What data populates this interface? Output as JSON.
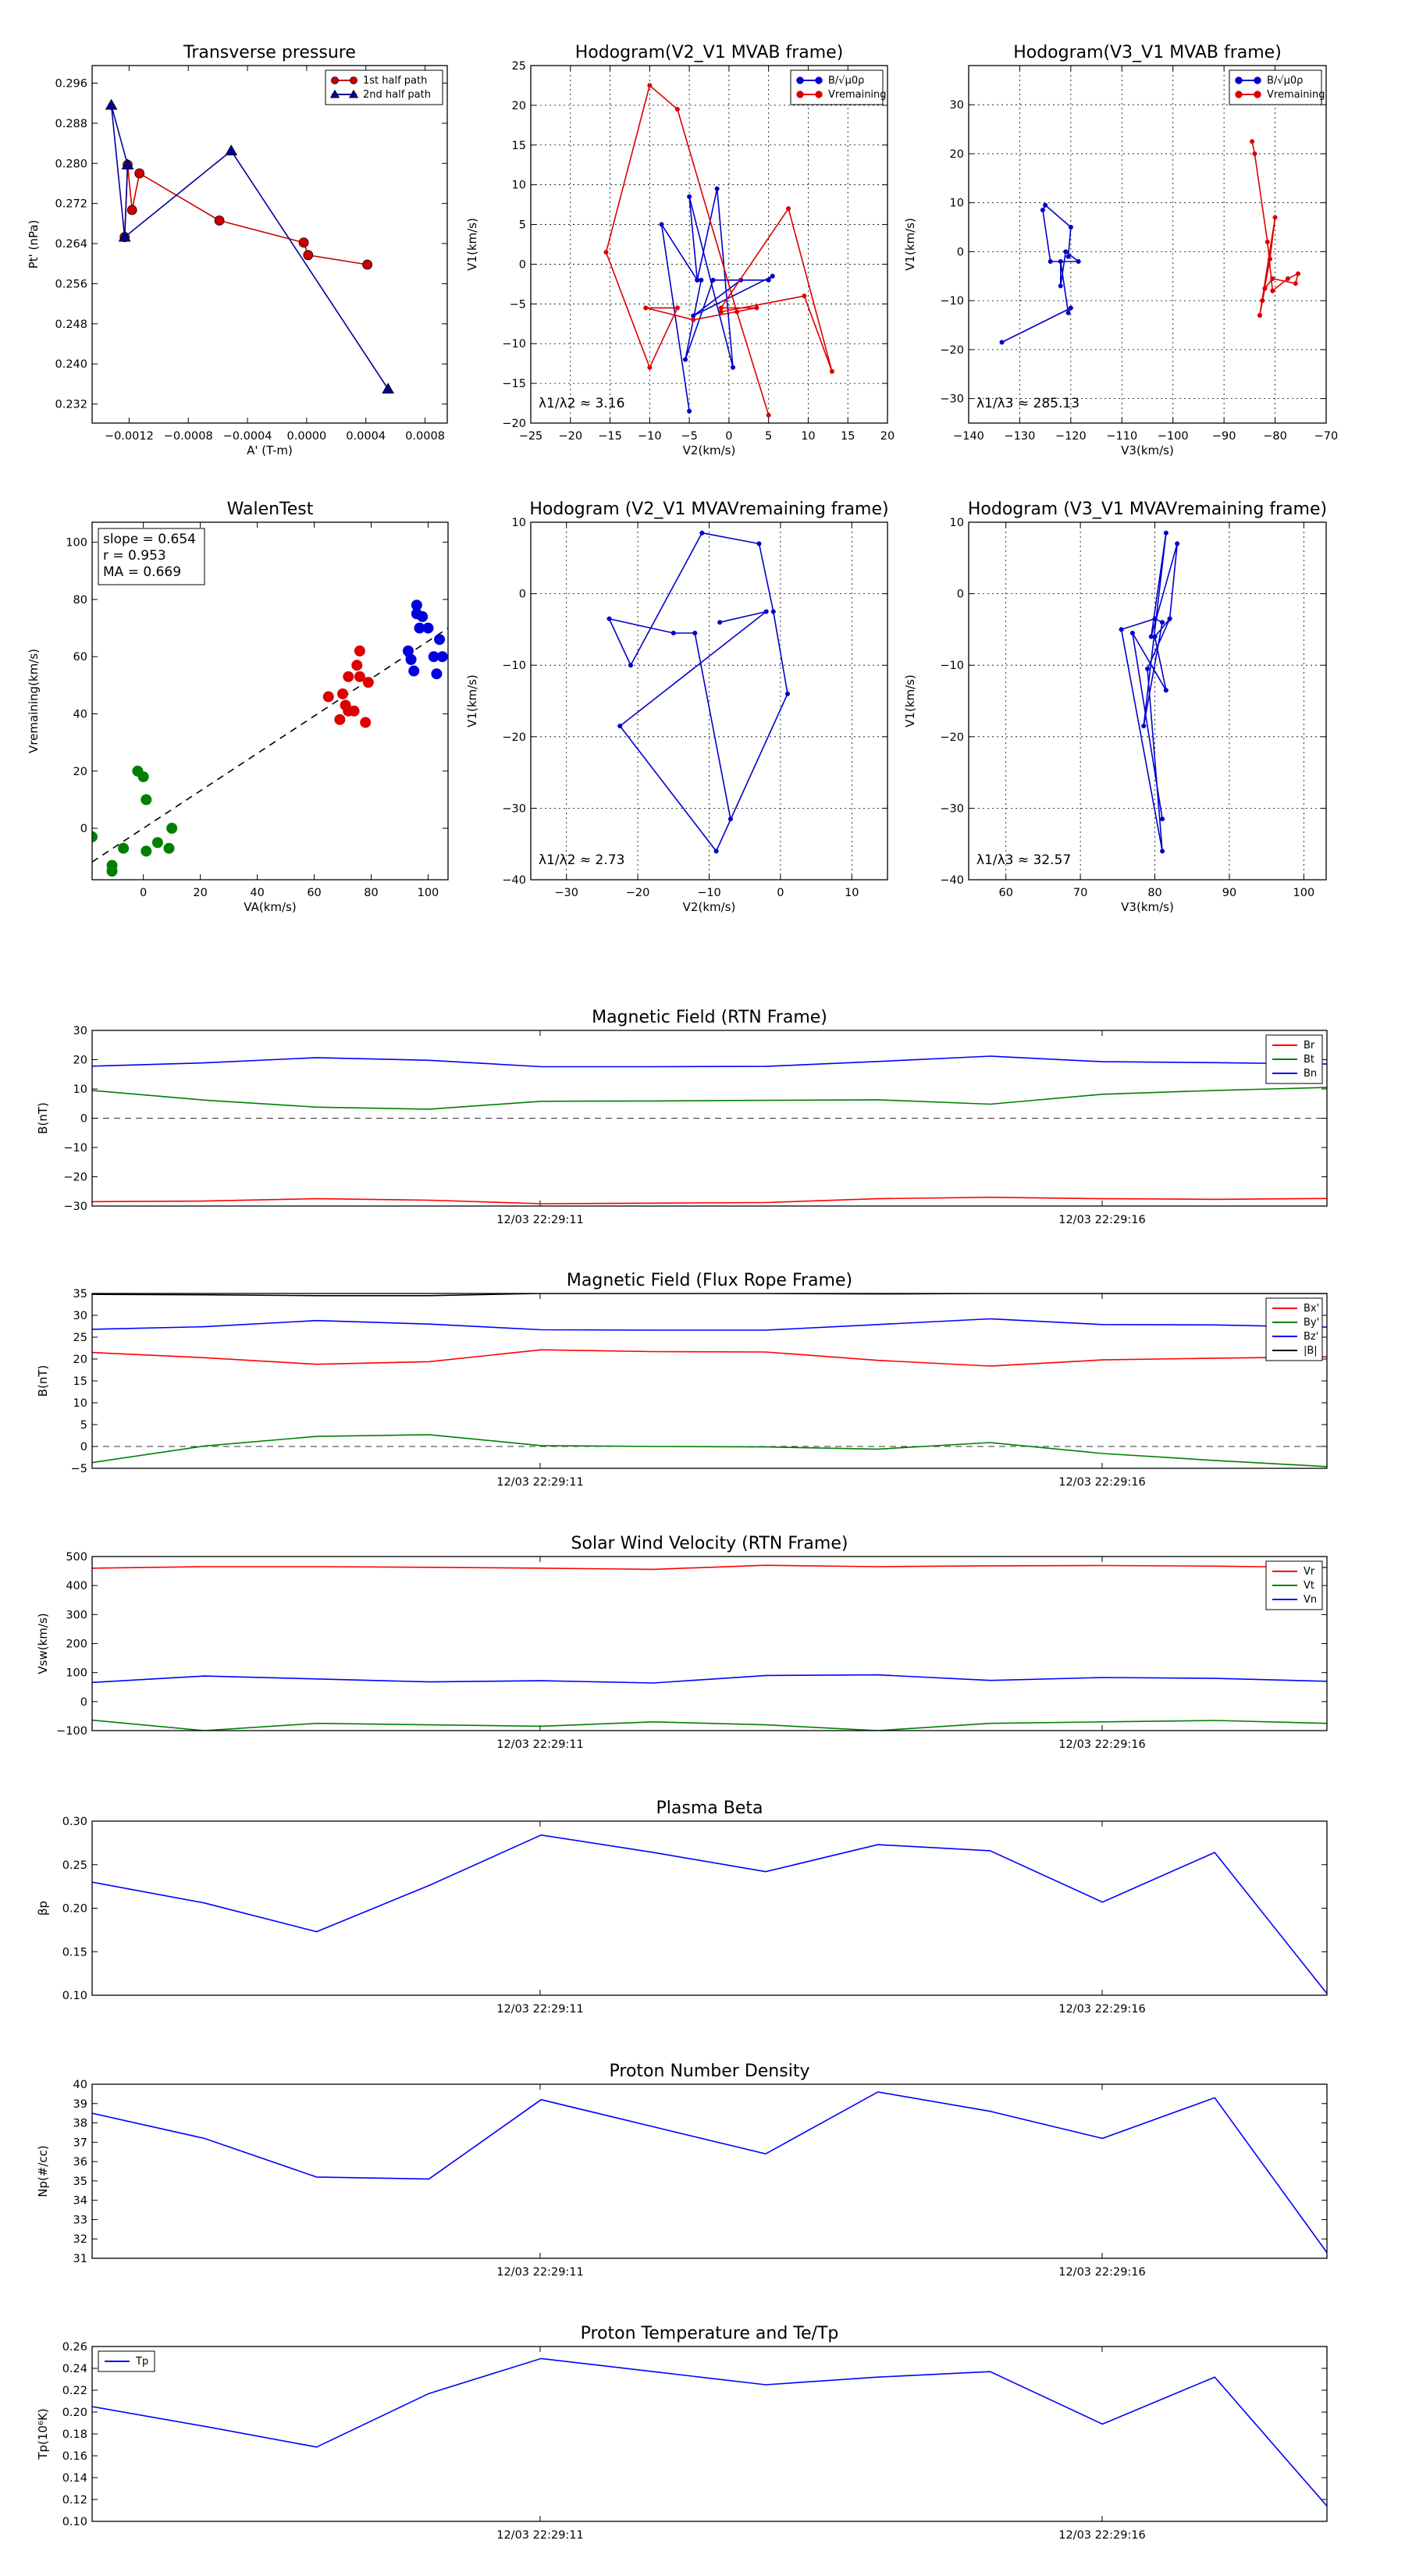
{
  "chart_data": [
    {
      "id": "transverse",
      "type": "line",
      "title": "Transverse pressure",
      "xlabel": "A' (T-m)",
      "ylabel": "Pt' (nPa)",
      "xlim": [
        -0.00145,
        0.00095
      ],
      "ylim": [
        0.2282,
        0.2995
      ],
      "xticks": [
        -0.0012,
        -0.0008,
        -0.0004,
        0.0,
        0.0004,
        0.0008
      ],
      "xtick_labels": [
        "−0.0012",
        "−0.0008",
        "−0.0004",
        "0.0000",
        "0.0004",
        "0.0008"
      ],
      "yticks": [
        0.232,
        0.24,
        0.248,
        0.256,
        0.264,
        0.272,
        0.28,
        0.288,
        0.296
      ],
      "ytick_labels": [
        "0.232",
        "0.240",
        "0.248",
        "0.256",
        "0.264",
        "0.272",
        "0.280",
        "0.288",
        "0.296"
      ],
      "grid": false,
      "legend": "top-right",
      "series": [
        {
          "name": "1st half path",
          "color": "#cc0000",
          "marker": "circle",
          "x": [
            0.00041,
            1e-05,
            -2e-05,
            -0.00059,
            -0.00113,
            -0.00118,
            -0.00121,
            -0.00123
          ],
          "y": [
            0.2598,
            0.2617,
            0.2642,
            0.2686,
            0.278,
            0.2707,
            0.2797,
            0.2653
          ]
        },
        {
          "name": "2nd half path",
          "color": "#000099",
          "marker": "triangle",
          "x": [
            -0.00123,
            -0.00121,
            -0.00132,
            -0.00123,
            -0.00051,
            0.00055
          ],
          "y": [
            0.2653,
            0.2797,
            0.2916,
            0.2653,
            0.2825,
            0.235
          ]
        }
      ]
    },
    {
      "id": "hodo_v2_mvab",
      "type": "line",
      "title": "Hodogram(V2_V1 MVAB frame)",
      "xlabel": "V2(km/s)",
      "ylabel": "V1(km/s)",
      "xlim": [
        -25,
        20
      ],
      "ylim": [
        -20,
        25
      ],
      "xticks": [
        -25,
        -20,
        -15,
        -10,
        -5,
        0,
        5,
        10,
        15,
        20
      ],
      "xtick_labels": [
        "−25",
        "−20",
        "−15",
        "−10",
        "−5",
        "0",
        "5",
        "10",
        "15",
        "20"
      ],
      "yticks": [
        -20,
        -15,
        -10,
        -5,
        0,
        5,
        10,
        15,
        20,
        25
      ],
      "ytick_labels": [
        "−20",
        "−15",
        "−10",
        "−5",
        "0",
        "5",
        "10",
        "15",
        "20",
        "25"
      ],
      "grid": true,
      "legend": "top-right",
      "annotation": "λ1/λ2 ≈ 3.16",
      "series": [
        {
          "name": "B/√μ0ρ",
          "color": "#0000cc",
          "x": [
            -5,
            -8.5,
            -4,
            -1.5,
            0.5,
            -5,
            -4,
            -3.5,
            -5.5,
            -2,
            5,
            5.5,
            -4.5,
            1.5
          ],
          "y": [
            -18.5,
            5,
            -2,
            9.5,
            -13,
            8.5,
            -2,
            -2,
            -12,
            -2,
            -2,
            -1.5,
            -6.5,
            -2
          ]
        },
        {
          "name": "Vremaining",
          "color": "#dd0000",
          "x": [
            5,
            1,
            -6.5,
            -10,
            -15.5,
            -10,
            -6.5,
            -10.5,
            -4.5,
            3.5,
            -1,
            7.5,
            13,
            9.5,
            -1
          ],
          "y": [
            -19,
            -6,
            19.5,
            22.5,
            1.5,
            -13,
            -5.5,
            -5.5,
            -7,
            -5.5,
            -5.5,
            7,
            -13.5,
            -4,
            -6
          ]
        }
      ]
    },
    {
      "id": "hodo_v3_mvab",
      "type": "line",
      "title": "Hodogram(V3_V1 MVAB frame)",
      "xlabel": "V3(km/s)",
      "ylabel": "V1(km/s)",
      "xlim": [
        -140,
        -70
      ],
      "ylim": [
        -35,
        38
      ],
      "xticks": [
        -140,
        -130,
        -120,
        -110,
        -100,
        -90,
        -80,
        -70
      ],
      "xtick_labels": [
        "−140",
        "−130",
        "−120",
        "−110",
        "−100",
        "−90",
        "−80",
        "−70"
      ],
      "yticks": [
        -30,
        -20,
        -10,
        0,
        10,
        20,
        30
      ],
      "ytick_labels": [
        "−30",
        "−20",
        "−10",
        "0",
        "10",
        "20",
        "30"
      ],
      "grid": true,
      "legend": "top-right",
      "annotation": "λ1/λ3 ≈ 285.13",
      "series": [
        {
          "name": "B/√μ0ρ",
          "color": "#0000cc",
          "x": [
            -133.5,
            -120,
            -120.5,
            -122,
            -122,
            -121,
            -118.5,
            -124,
            -125.5,
            -125,
            -120,
            -120.5
          ],
          "y": [
            -18.5,
            -11.5,
            -12.5,
            -2,
            -7,
            0,
            -2,
            -2,
            8.5,
            9.5,
            5,
            -1
          ]
        },
        {
          "name": "Vremaining",
          "color": "#dd0000",
          "x": [
            -84.5,
            -84,
            -81.5,
            -80.5,
            -77.5,
            -75.5,
            -76,
            -80.5,
            -82,
            -83,
            -80,
            -81,
            -82.5,
            -83
          ],
          "y": [
            22.5,
            20,
            2,
            -8,
            -5.5,
            -4.5,
            -6.5,
            -5.5,
            -7.5,
            -13,
            7,
            -1.5,
            -10,
            -13
          ]
        }
      ]
    },
    {
      "id": "walen",
      "type": "scatter",
      "title": "WalenTest",
      "xlabel": "VA(km/s)",
      "ylabel": "Vremaining(km/s)",
      "xlim": [
        -18,
        107
      ],
      "ylim": [
        -18,
        107
      ],
      "xticks": [
        0,
        20,
        40,
        60,
        80,
        100
      ],
      "xtick_labels": [
        "0",
        "20",
        "40",
        "60",
        "80",
        "100"
      ],
      "yticks": [
        0,
        20,
        40,
        60,
        80,
        100
      ],
      "ytick_labels": [
        "0",
        "20",
        "40",
        "60",
        "80",
        "100"
      ],
      "grid": false,
      "stats": [
        "slope = 0.654",
        "r = 0.953",
        "MA = 0.669"
      ],
      "fit_line": {
        "slope": 0.654,
        "intercept": 0,
        "color": "#000000",
        "style": "dashed"
      },
      "series": [
        {
          "name": "",
          "color": "#008000",
          "x": [
            -18,
            -11,
            -11,
            -7,
            -2,
            0,
            1,
            1,
            5,
            9,
            10
          ],
          "y": [
            -3,
            -13,
            -15,
            -7,
            20,
            18,
            10,
            -8,
            -5,
            -7,
            0
          ]
        },
        {
          "name": "",
          "color": "#dd0000",
          "x": [
            65,
            69,
            70,
            71,
            72,
            72,
            74,
            75,
            76,
            76,
            78,
            79
          ],
          "y": [
            46,
            38,
            47,
            43,
            53,
            41,
            41,
            57,
            53,
            62,
            37,
            51
          ]
        },
        {
          "name": "",
          "color": "#0000dd",
          "x": [
            93,
            94,
            95,
            96,
            96,
            97,
            98,
            100,
            102,
            103,
            104,
            105
          ],
          "y": [
            62,
            59,
            55,
            75,
            78,
            70,
            74,
            70,
            60,
            54,
            66,
            60
          ]
        }
      ]
    },
    {
      "id": "hodo_v2_mvav",
      "type": "line",
      "title": "Hodogram (V2_V1 MVAVremaining frame)",
      "xlabel": "V2(km/s)",
      "ylabel": "V1(km/s)",
      "xlim": [
        -35,
        15
      ],
      "ylim": [
        -40,
        10
      ],
      "xticks": [
        -30,
        -20,
        -10,
        0,
        10
      ],
      "xtick_labels": [
        "−30",
        "−20",
        "−10",
        "0",
        "10"
      ],
      "yticks": [
        -40,
        -30,
        -20,
        -10,
        0,
        10
      ],
      "ytick_labels": [
        "−40",
        "−30",
        "−20",
        "−10",
        "0",
        "10"
      ],
      "grid": true,
      "annotation": "λ1/λ2 ≈ 2.73",
      "series": [
        {
          "name": "",
          "color": "#0000cc",
          "x": [
            -7,
            -12,
            -15,
            -24,
            -21,
            -11,
            -3,
            -1,
            1,
            -9,
            -22.5,
            -2,
            -8.5
          ],
          "y": [
            -31.5,
            -5.5,
            -5.5,
            -3.5,
            -10,
            8.5,
            7,
            -2.5,
            -14,
            -36,
            -18.5,
            -2.5,
            -4
          ]
        }
      ]
    },
    {
      "id": "hodo_v3_mvav",
      "type": "line",
      "title": "Hodogram (V3_V1 MVAVremaining frame)",
      "xlabel": "V3(km/s)",
      "ylabel": "V1(km/s)",
      "xlim": [
        55,
        103
      ],
      "ylim": [
        -40,
        10
      ],
      "xticks": [
        60,
        70,
        80,
        90,
        100
      ],
      "xtick_labels": [
        "60",
        "70",
        "80",
        "90",
        "100"
      ],
      "yticks": [
        -40,
        -30,
        -20,
        -10,
        0,
        10
      ],
      "ytick_labels": [
        "−40",
        "−30",
        "−20",
        "−10",
        "0",
        "10"
      ],
      "grid": true,
      "annotation": "λ1/λ3 ≈ 32.57",
      "series": [
        {
          "name": "",
          "color": "#0000cc",
          "x": [
            81,
            77,
            81.5,
            80,
            82,
            79,
            81,
            75.5,
            80,
            81,
            78.5,
            81.5,
            79.5,
            83,
            82
          ],
          "y": [
            -31.5,
            -5.5,
            -13.5,
            -6,
            -3.5,
            -10.5,
            -36,
            -5,
            -3.5,
            -4,
            -18.5,
            8.5,
            -6,
            7,
            -3.5
          ]
        }
      ]
    },
    {
      "id": "mag_rtn",
      "type": "line",
      "title": "Magnetic Field (RTN Frame)",
      "ylabel": "B(nT)",
      "ylim": [
        -30,
        30
      ],
      "yticks": [
        -30,
        -20,
        -10,
        0,
        10,
        20,
        30
      ],
      "ytick_labels": [
        "−30",
        "−20",
        "−10",
        "0",
        "10",
        "20",
        "30"
      ],
      "time_ticks": [
        "12/03 22:29:11",
        "12/03 22:29:16"
      ],
      "legend": "top-right",
      "zero_line": true,
      "series": [
        {
          "name": "Br",
          "color": "#ff0000",
          "values": [
            -28.5,
            -28.3,
            -27.5,
            -28,
            -29.2,
            -29,
            -28.8,
            -27.5,
            -27,
            -27.5,
            -27.7,
            -27.4
          ]
        },
        {
          "name": "Bt",
          "color": "#008000",
          "values": [
            9.5,
            6.2,
            3.8,
            3.1,
            5.8,
            5.9,
            6.1,
            6.3,
            4.8,
            8.2,
            9.5,
            10.5
          ]
        },
        {
          "name": "Bn",
          "color": "#0000ff",
          "values": [
            17.8,
            18.9,
            20.7,
            19.8,
            17.6,
            17.6,
            17.7,
            19.4,
            21.2,
            19.3,
            19.0,
            18.5
          ]
        }
      ]
    },
    {
      "id": "mag_fr",
      "type": "line",
      "title": "Magnetic Field (Flux Rope Frame)",
      "ylabel": "B(nT)",
      "ylim": [
        -5,
        35
      ],
      "yticks": [
        -5,
        0,
        5,
        10,
        15,
        20,
        25,
        30,
        35
      ],
      "ytick_labels": [
        "−5",
        "0",
        "5",
        "10",
        "15",
        "20",
        "25",
        "30",
        "35"
      ],
      "time_ticks": [
        "12/03 22:29:11",
        "12/03 22:29:16"
      ],
      "legend": "top-right",
      "zero_line": true,
      "series": [
        {
          "name": "Bx'",
          "color": "#ff0000",
          "values": [
            21.5,
            20.3,
            18.8,
            19.4,
            22.1,
            21.7,
            21.6,
            19.7,
            18.4,
            19.8,
            20.2,
            20.5
          ]
        },
        {
          "name": "By'",
          "color": "#008000",
          "values": [
            -3.7,
            0.1,
            2.3,
            2.7,
            0.2,
            0.0,
            -0.1,
            -0.6,
            0.9,
            -1.6,
            -3.2,
            -4.6
          ]
        },
        {
          "name": "Bz'",
          "color": "#0000ff",
          "values": [
            26.8,
            27.4,
            28.8,
            28.0,
            26.7,
            26.6,
            26.6,
            27.9,
            29.2,
            27.9,
            27.8,
            27.3
          ]
        },
        {
          "name": "|B|",
          "color": "#000000",
          "values": [
            34.8,
            34.7,
            34.5,
            34.5,
            35,
            35,
            35,
            34.9,
            35,
            35,
            35,
            35
          ]
        }
      ]
    },
    {
      "id": "sw_vel",
      "type": "line",
      "title": "Solar Wind Velocity (RTN Frame)",
      "ylabel": "Vsw(km/s)",
      "ylim": [
        -100,
        500
      ],
      "yticks": [
        -100,
        0,
        100,
        200,
        300,
        400,
        500
      ],
      "ytick_labels": [
        "−100",
        "0",
        "100",
        "200",
        "300",
        "400",
        "500"
      ],
      "time_ticks": [
        "12/03 22:29:11",
        "12/03 22:29:16"
      ],
      "legend": "top-right",
      "series": [
        {
          "name": "Vr",
          "color": "#ff0000",
          "values": [
            460,
            465,
            465,
            463,
            460,
            456,
            470,
            465,
            468,
            469,
            467,
            462
          ]
        },
        {
          "name": "Vt",
          "color": "#008000",
          "values": [
            -64,
            -100,
            -75,
            -80,
            -85,
            -70,
            -80,
            -100,
            -75,
            -70,
            -65,
            -75
          ]
        },
        {
          "name": "Vn",
          "color": "#0000ff",
          "values": [
            66,
            88,
            78,
            68,
            72,
            64,
            90,
            92,
            73,
            83,
            80,
            70
          ]
        }
      ]
    },
    {
      "id": "beta",
      "type": "line",
      "title": "Plasma Beta",
      "ylabel": "βp",
      "ylim": [
        0.1,
        0.3
      ],
      "yticks": [
        0.1,
        0.15,
        0.2,
        0.25,
        0.3
      ],
      "ytick_labels": [
        "0.10",
        "0.15",
        "0.20",
        "0.25",
        "0.30"
      ],
      "time_ticks": [
        "12/03 22:29:11",
        "12/03 22:29:16"
      ],
      "series": [
        {
          "name": "",
          "color": "#0000ff",
          "values": [
            0.23,
            0.206,
            0.173,
            0.226,
            0.284,
            0.264,
            0.242,
            0.273,
            0.266,
            0.207,
            0.264,
            0.102
          ]
        }
      ]
    },
    {
      "id": "density",
      "type": "line",
      "title": "Proton Number Density",
      "ylabel": "Np(#/cc)",
      "ylim": [
        31,
        40
      ],
      "yticks": [
        31,
        32,
        33,
        34,
        35,
        36,
        37,
        38,
        39,
        40
      ],
      "ytick_labels": [
        "31",
        "32",
        "33",
        "34",
        "35",
        "36",
        "37",
        "38",
        "39",
        "40"
      ],
      "time_ticks": [
        "12/03 22:29:11",
        "12/03 22:29:16"
      ],
      "series": [
        {
          "name": "",
          "color": "#0000ff",
          "values": [
            38.5,
            37.2,
            35.2,
            35.1,
            39.2,
            37.8,
            36.4,
            39.6,
            38.6,
            37.2,
            39.3,
            31.3
          ]
        }
      ]
    },
    {
      "id": "temp",
      "type": "line",
      "title": "Proton Temperature and Te/Tp",
      "ylabel": "Tp(10⁶K)",
      "ylim": [
        0.1,
        0.26
      ],
      "yticks": [
        0.1,
        0.12,
        0.14,
        0.16,
        0.18,
        0.2,
        0.22,
        0.24,
        0.26
      ],
      "ytick_labels": [
        "0.10",
        "0.12",
        "0.14",
        "0.16",
        "0.18",
        "0.20",
        "0.22",
        "0.24",
        "0.26"
      ],
      "time_ticks": [
        "12/03 22:29:11",
        "12/03 22:29:16"
      ],
      "legend": "top-left",
      "series": [
        {
          "name": "Tp",
          "color": "#0000ff",
          "values": [
            0.205,
            0.187,
            0.168,
            0.217,
            0.249,
            0.237,
            0.225,
            0.232,
            0.237,
            0.189,
            0.232,
            0.114
          ]
        }
      ]
    }
  ]
}
